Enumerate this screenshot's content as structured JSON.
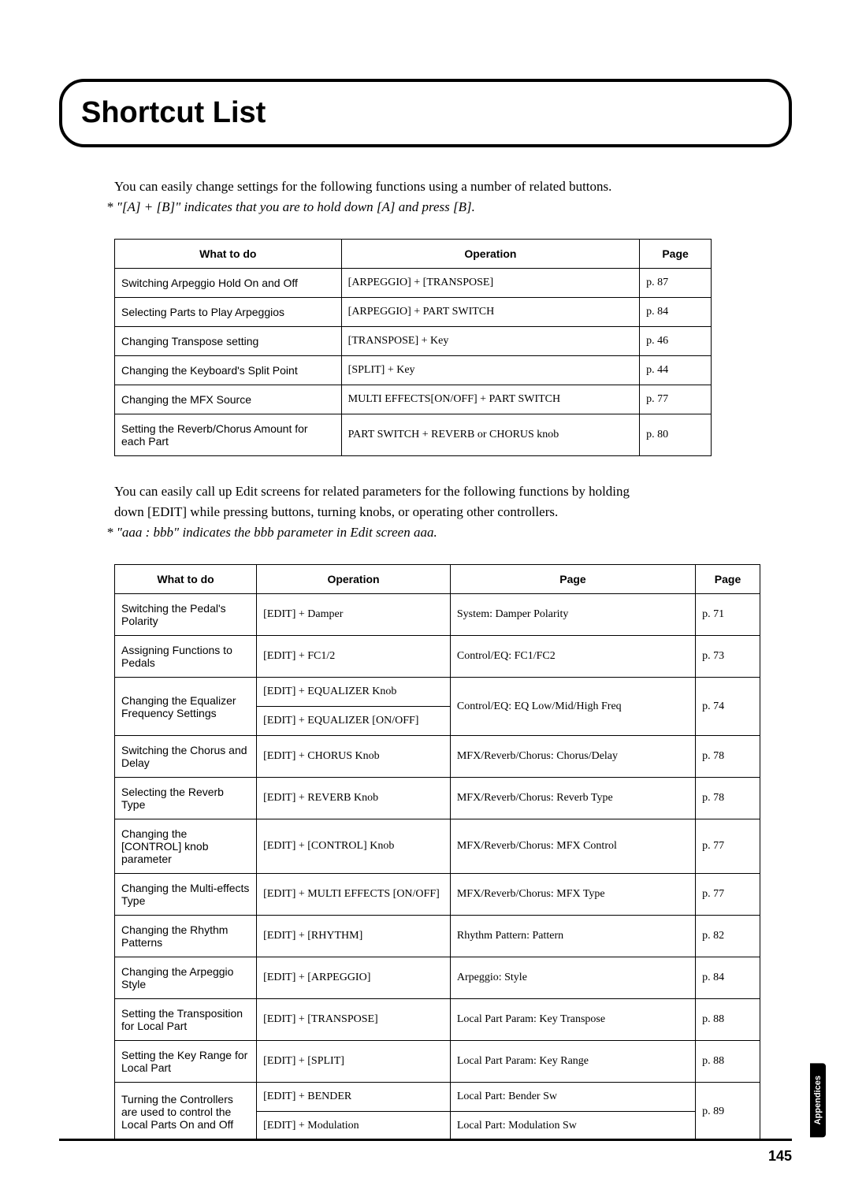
{
  "title": "Shortcut List",
  "intro1": "You can easily change settings for the following functions using a number of related buttons.",
  "note1": "*  \"[A] + [B]\" indicates that you are to hold down [A] and press [B].",
  "intro2_line1": "You can easily call up Edit screens for related parameters for the following functions by holding",
  "intro2_line2": "down [EDIT] while pressing buttons, turning knobs, or operating other controllers.",
  "note2": "*  \"aaa : bbb\" indicates the bbb parameter in Edit screen aaa.",
  "table1": {
    "headers": {
      "what": "What to do",
      "op": "Operation",
      "page": "Page"
    },
    "rows": [
      {
        "what": "Switching Arpeggio Hold On and Off",
        "op": "[ARPEGGIO] + [TRANSPOSE]",
        "page": "p. 87"
      },
      {
        "what": "Selecting Parts to Play Arpeggios",
        "op": "[ARPEGGIO] + PART SWITCH",
        "page": "p. 84"
      },
      {
        "what": "Changing Transpose setting",
        "op": "[TRANSPOSE] + Key",
        "page": "p. 46"
      },
      {
        "what": "Changing the Keyboard's Split Point",
        "op": "[SPLIT] + Key",
        "page": "p. 44"
      },
      {
        "what": "Changing the MFX Source",
        "op": "MULTI EFFECTS[ON/OFF] + PART SWITCH",
        "page": "p. 77"
      },
      {
        "what": "Setting the Reverb/Chorus Amount for each Part",
        "op": "PART SWITCH + REVERB or CHORUS knob",
        "page": "p. 80"
      }
    ]
  },
  "table2": {
    "headers": {
      "what": "What to do",
      "op": "Operation",
      "pagelabel": "Page",
      "page": "Page"
    },
    "rows": [
      {
        "what": "Switching the Pedal's Polarity",
        "op": "[EDIT] + Damper",
        "pl": "System: Damper Polarity",
        "page": "p. 71",
        "span_what": 1,
        "span_pl": 1,
        "span_page": 1
      },
      {
        "what": "Assigning Functions to Pedals",
        "op": "[EDIT] + FC1/2",
        "pl": "Control/EQ: FC1/FC2",
        "page": "p. 73",
        "span_what": 1,
        "span_pl": 1,
        "span_page": 1
      },
      {
        "what": "Changing the Equalizer Frequency Settings",
        "op": "[EDIT] + EQUALIZER Knob",
        "pl": "Control/EQ: EQ Low/Mid/High Freq",
        "page": "p. 74",
        "span_what": 2,
        "span_pl": 2,
        "span_page": 2
      },
      {
        "what": "",
        "op": "[EDIT] + EQUALIZER [ON/OFF]",
        "pl": "",
        "page": "",
        "span_what": 0,
        "span_pl": 0,
        "span_page": 0
      },
      {
        "what": "Switching the Chorus and Delay",
        "op": "[EDIT] + CHORUS Knob",
        "pl": "MFX/Reverb/Chorus: Chorus/Delay",
        "page": "p. 78",
        "span_what": 1,
        "span_pl": 1,
        "span_page": 1
      },
      {
        "what": "Selecting the Reverb Type",
        "op": "[EDIT] + REVERB Knob",
        "pl": "MFX/Reverb/Chorus: Reverb Type",
        "page": "p. 78",
        "span_what": 1,
        "span_pl": 1,
        "span_page": 1
      },
      {
        "what": "Changing the [CONTROL] knob parameter",
        "op": "[EDIT] + [CONTROL] Knob",
        "pl": "MFX/Reverb/Chorus: MFX Control",
        "page": "p. 77",
        "span_what": 1,
        "span_pl": 1,
        "span_page": 1
      },
      {
        "what": "Changing the Multi-effects Type",
        "op": "[EDIT] + MULTI EFFECTS [ON/OFF]",
        "pl": "MFX/Reverb/Chorus: MFX Type",
        "page": "p. 77",
        "span_what": 1,
        "span_pl": 1,
        "span_page": 1
      },
      {
        "what": "Changing the Rhythm Patterns",
        "op": "[EDIT] + [RHYTHM]",
        "pl": "Rhythm Pattern: Pattern",
        "page": "p. 82",
        "span_what": 1,
        "span_pl": 1,
        "span_page": 1
      },
      {
        "what": "Changing the Arpeggio Style",
        "op": "[EDIT] + [ARPEGGIO]",
        "pl": "Arpeggio: Style",
        "page": "p. 84",
        "span_what": 1,
        "span_pl": 1,
        "span_page": 1
      },
      {
        "what": "Setting the Transposition for Local Part",
        "op": "[EDIT] + [TRANSPOSE]",
        "pl": "Local Part Param: Key Transpose",
        "page": "p. 88",
        "span_what": 1,
        "span_pl": 1,
        "span_page": 1
      },
      {
        "what": "Setting the Key Range for Local Part",
        "op": "[EDIT] + [SPLIT]",
        "pl": "Local Part Param: Key Range",
        "page": "p. 88",
        "span_what": 1,
        "span_pl": 1,
        "span_page": 1
      },
      {
        "what": "Turning the Controllers are used to control the Local Parts On and Off",
        "op": "[EDIT] + BENDER",
        "pl": "Local Part: Bender Sw",
        "page": "p. 89",
        "span_what": 2,
        "span_pl": 1,
        "span_page": 2
      },
      {
        "what": "",
        "op": "[EDIT] + Modulation",
        "pl": "Local Part: Modulation Sw",
        "page": "",
        "span_what": 0,
        "span_pl": 1,
        "span_page": 0
      }
    ]
  },
  "page_number": "145",
  "side_tab": "Appendices",
  "colors": {
    "border": "#000000",
    "bg": "#ffffff",
    "text": "#000000"
  },
  "t1_widths": {
    "what": "38%",
    "op": "50%",
    "page": "12%"
  },
  "t2_widths": {
    "what": "22%",
    "op": "30%",
    "pl": "38%",
    "page": "10%"
  }
}
